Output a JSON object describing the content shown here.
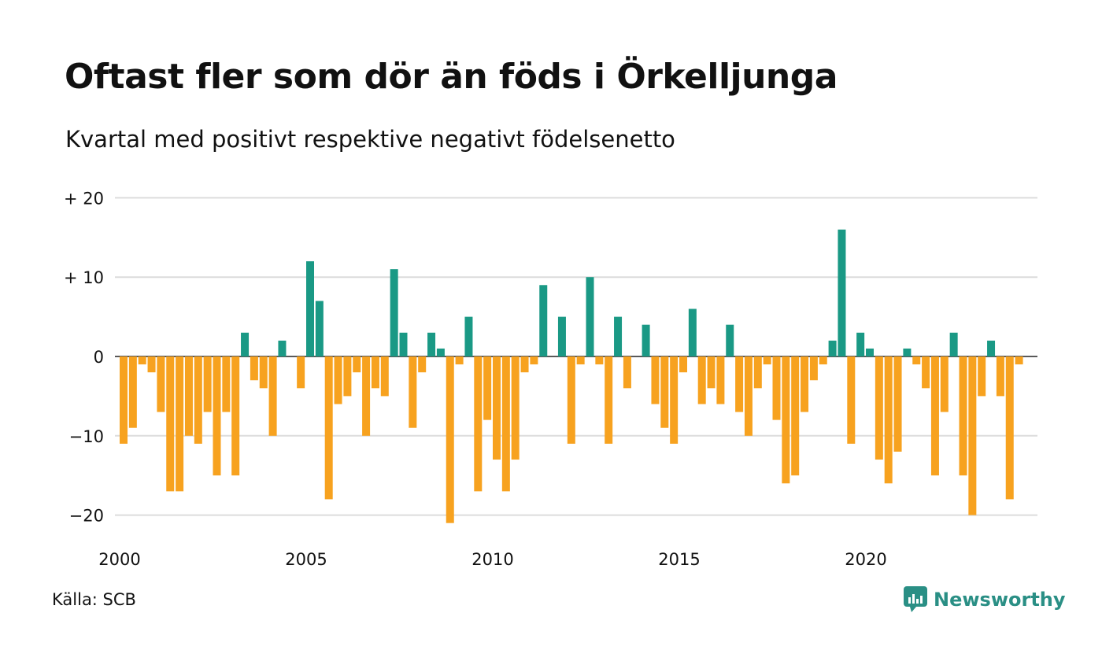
{
  "title": "Oftast fler som dör än föds i Örkelljunga",
  "subtitle": "Kvartal med positivt respektive negativt födelsenetto",
  "source": "Källa: SCB",
  "brand": {
    "name": "Newsworthy",
    "icon": "newsworthy-logo-icon"
  },
  "colors": {
    "positive": "#1a9985",
    "negative": "#f7a21f",
    "grid": "#dcdcdc",
    "zero_line": "#222222",
    "text": "#111111",
    "brand": "#2a8f85"
  },
  "chart_data": {
    "type": "bar",
    "x_start": "2000 Q1",
    "x_ticks": [
      "2000",
      "2005",
      "2010",
      "2015",
      "2020"
    ],
    "y_ticks": [
      "+ 20",
      "+ 10",
      "0",
      "−10",
      "−20"
    ],
    "ylim": [
      -23,
      20
    ],
    "grid": true,
    "values": [
      -11,
      -9,
      -1,
      -2,
      -7,
      -17,
      -17,
      -10,
      -11,
      -7,
      -15,
      -7,
      -15,
      3,
      -3,
      -4,
      -10,
      2,
      0,
      -4,
      12,
      7,
      -18,
      -6,
      -5,
      -2,
      -10,
      -4,
      -5,
      11,
      3,
      -9,
      -2,
      3,
      1,
      -21,
      -1,
      5,
      -17,
      -8,
      -13,
      -17,
      -13,
      -2,
      -1,
      9,
      0,
      5,
      -11,
      -1,
      10,
      -1,
      -11,
      5,
      -4,
      0,
      4,
      -6,
      -9,
      -11,
      -2,
      6,
      -6,
      -4,
      -6,
      4,
      -7,
      -10,
      -4,
      -1,
      -8,
      -16,
      -15,
      -7,
      -3,
      -1,
      2,
      16,
      -11,
      3,
      1,
      -13,
      -16,
      -12,
      1,
      -1,
      -4,
      -15,
      -7,
      3,
      -15,
      -20,
      -5,
      2,
      -5,
      -18,
      -1
    ]
  }
}
